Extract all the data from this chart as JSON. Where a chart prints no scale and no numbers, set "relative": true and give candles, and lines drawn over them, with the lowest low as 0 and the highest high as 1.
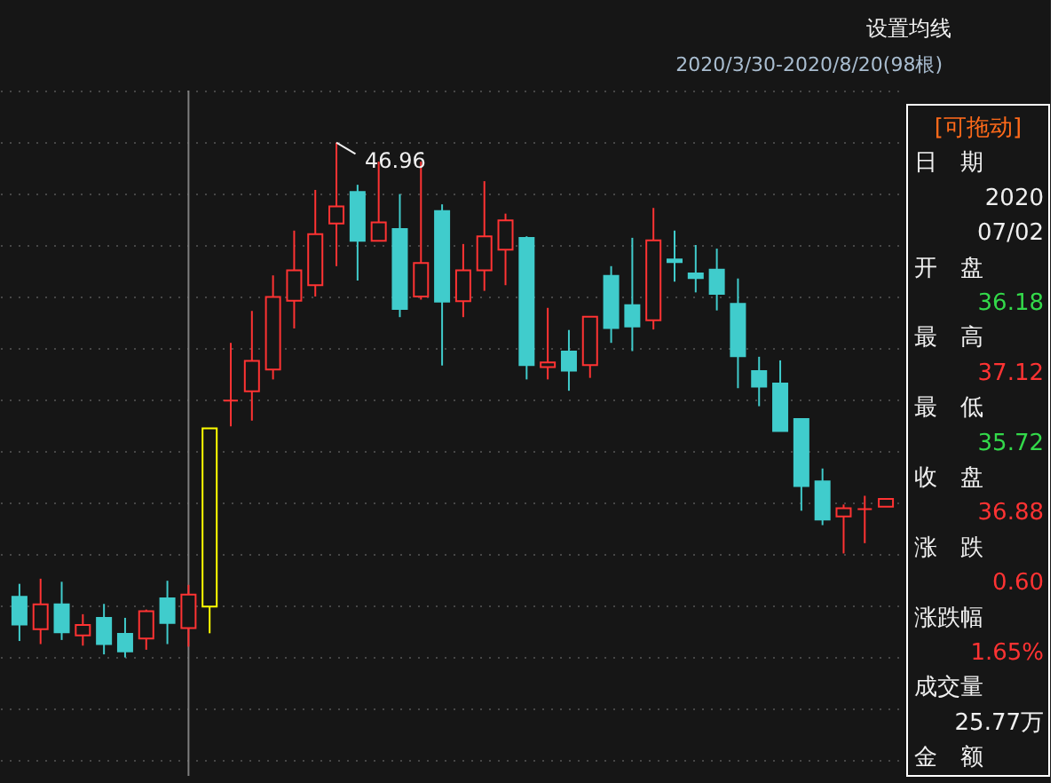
{
  "chart_data": {
    "type": "candlestick",
    "relative": true,
    "categories": [
      null,
      null,
      null,
      null,
      null,
      null,
      null,
      null,
      null,
      null,
      null,
      null,
      null,
      null,
      null,
      null,
      null,
      null,
      null,
      null,
      null,
      null,
      null,
      null,
      null,
      null,
      null,
      null,
      null,
      null,
      null,
      null,
      null,
      null,
      null,
      null,
      null,
      null,
      null,
      null,
      null,
      null
    ],
    "ohlc": [
      [
        0.118,
        0.143,
        0.032,
        0.064
      ],
      [
        0.055,
        0.153,
        0.026,
        0.103
      ],
      [
        0.103,
        0.147,
        0.034,
        0.049
      ],
      [
        0.043,
        0.084,
        0.023,
        0.063
      ],
      [
        0.077,
        0.104,
        0.006,
        0.026
      ],
      [
        0.046,
        0.077,
        0,
        0.012
      ],
      [
        0.037,
        0.093,
        0.015,
        0.09
      ],
      [
        0.115,
        0.149,
        0.026,
        0.067
      ],
      [
        0.057,
        0.141,
        0.021,
        0.122
      ],
      [
        0.099,
        0.445,
        0.047,
        0.445
      ],
      [
        0.499,
        0.611,
        0.449,
        0.499
      ],
      [
        0.517,
        0.673,
        0.46,
        0.576
      ],
      [
        0.559,
        0.742,
        0.54,
        0.7
      ],
      [
        0.693,
        0.829,
        0.639,
        0.752
      ],
      [
        0.723,
        0.908,
        0.701,
        0.822
      ],
      [
        0.843,
        1,
        0.76,
        0.876
      ],
      [
        0.904,
        0.918,
        0.732,
        0.809
      ],
      [
        0.809,
        0.963,
        0.809,
        0.845
      ],
      [
        0.832,
        0.9,
        0.661,
        0.677
      ],
      [
        0.701,
        0.963,
        0.695,
        0.766
      ],
      [
        0.867,
        0.88,
        0.567,
        0.691
      ],
      [
        0.692,
        0.803,
        0.661,
        0.752
      ],
      [
        0.752,
        0.925,
        0.712,
        0.818
      ],
      [
        0.792,
        0.862,
        0.723,
        0.849
      ],
      [
        0.815,
        0.818,
        0.54,
        0.568
      ],
      [
        0.564,
        0.679,
        0.54,
        0.573
      ],
      [
        0.594,
        0.636,
        0.518,
        0.557
      ],
      [
        0.568,
        0.662,
        0.543,
        0.662
      ],
      [
        0.741,
        0.76,
        0.611,
        0.64
      ],
      [
        0.684,
        0.815,
        0.595,
        0.643
      ],
      [
        0.655,
        0.873,
        0.637,
        0.81
      ],
      [
        0.773,
        0.829,
        0.73,
        0.768
      ],
      [
        0.746,
        0.801,
        0.709,
        0.737
      ],
      [
        0.753,
        0.794,
        0.674,
        0.706
      ],
      [
        0.687,
        0.736,
        0.523,
        0.585
      ],
      [
        0.556,
        0.584,
        0.488,
        0.526
      ],
      [
        0.532,
        0.577,
        0.44,
        0.44
      ],
      [
        0.463,
        0.463,
        0.285,
        0.333
      ],
      [
        0.342,
        0.367,
        0.257,
        0.268
      ],
      [
        0.274,
        0.297,
        0.202,
        0.29
      ],
      [
        0.288,
        0.314,
        0.222,
        0.288
      ],
      [
        0.293,
        0.308,
        0.293,
        0.308
      ]
    ],
    "colors": [
      "#40cccc",
      "#ff3333",
      "#40cccc",
      "#ff3333",
      "#40cccc",
      "#40cccc",
      "#ff3333",
      "#40cccc",
      "#ff3333",
      "#ffff00",
      "#ff3333",
      "#ff3333",
      "#ff3333",
      "#ff3333",
      "#ff3333",
      "#ff3333",
      "#40cccc",
      "#ff3333",
      "#40cccc",
      "#ff3333",
      "#40cccc",
      "#ff3333",
      "#ff3333",
      "#ff3333",
      "#40cccc",
      "#ff3333",
      "#40cccc",
      "#ff3333",
      "#40cccc",
      "#40cccc",
      "#ff3333",
      "#40cccc",
      "#40cccc",
      "#40cccc",
      "#40cccc",
      "#40cccc",
      "#40cccc",
      "#40cccc",
      "#40cccc",
      "#ff3333",
      "#ff3333",
      "#ff3333"
    ],
    "grid": "y",
    "annotations": [
      "设置均线",
      "2020/3/30-2020/8/20(98根)",
      "46.96",
      "[可拖动]",
      "日　期",
      "2020",
      "07/02",
      "开　盘",
      "36.18",
      "最　高",
      "37.12",
      "最　低",
      "35.72",
      "收　盘",
      "36.88",
      "涨　跌",
      "0.60",
      "涨跌幅",
      "1.65%",
      "成交量",
      "25.77万",
      "金　额"
    ]
  }
}
